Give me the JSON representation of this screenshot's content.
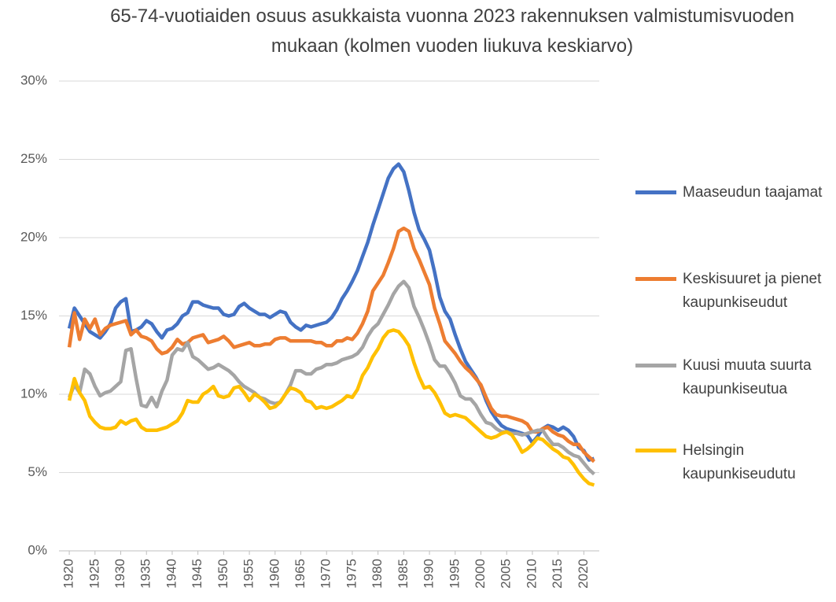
{
  "chart_data": {
    "type": "line",
    "title": "65-74-vuotiaiden osuus asukkaista vuonna 2023 rakennuksen valmistumisvuoden mukaan  (kolmen vuoden liukuva keskiarvo)",
    "x": [
      1920,
      1921,
      1922,
      1923,
      1924,
      1925,
      1926,
      1927,
      1928,
      1929,
      1930,
      1931,
      1932,
      1933,
      1934,
      1935,
      1936,
      1937,
      1938,
      1939,
      1940,
      1941,
      1942,
      1943,
      1944,
      1945,
      1946,
      1947,
      1948,
      1949,
      1950,
      1951,
      1952,
      1953,
      1954,
      1955,
      1956,
      1957,
      1958,
      1959,
      1960,
      1961,
      1962,
      1963,
      1964,
      1965,
      1966,
      1967,
      1968,
      1969,
      1970,
      1971,
      1972,
      1973,
      1974,
      1975,
      1976,
      1977,
      1978,
      1979,
      1980,
      1981,
      1982,
      1983,
      1984,
      1985,
      1986,
      1987,
      1988,
      1989,
      1990,
      1991,
      1992,
      1993,
      1994,
      1995,
      1996,
      1997,
      1998,
      1999,
      2000,
      2001,
      2002,
      2003,
      2004,
      2005,
      2006,
      2007,
      2008,
      2009,
      2010,
      2011,
      2012,
      2013,
      2014,
      2015,
      2016,
      2017,
      2018,
      2019,
      2020,
      2021,
      2022
    ],
    "series": [
      {
        "name": "Maaseudun taajamat",
        "color": "#4472c4",
        "values": [
          14.2,
          15.5,
          15.0,
          14.5,
          14.0,
          13.8,
          13.6,
          14.0,
          14.5,
          15.5,
          15.9,
          16.1,
          14.0,
          14.1,
          14.3,
          14.7,
          14.5,
          14.0,
          13.6,
          14.1,
          14.2,
          14.5,
          15.0,
          15.2,
          15.9,
          15.9,
          15.7,
          15.6,
          15.5,
          15.5,
          15.1,
          15.0,
          15.1,
          15.6,
          15.8,
          15.5,
          15.3,
          15.1,
          15.1,
          14.9,
          15.1,
          15.3,
          15.2,
          14.6,
          14.3,
          14.1,
          14.4,
          14.3,
          14.4,
          14.5,
          14.6,
          14.9,
          15.4,
          16.1,
          16.6,
          17.2,
          17.9,
          18.8,
          19.7,
          20.8,
          21.8,
          22.8,
          23.8,
          24.4,
          24.7,
          24.2,
          23.0,
          21.6,
          20.5,
          19.9,
          19.2,
          17.8,
          16.2,
          15.3,
          14.8,
          13.8,
          12.9,
          12.1,
          11.6,
          11.1,
          10.5,
          9.6,
          8.9,
          8.4,
          8.0,
          7.8,
          7.7,
          7.6,
          7.5,
          7.4,
          6.9,
          7.3,
          7.8,
          8.0,
          7.9,
          7.7,
          7.9,
          7.7,
          7.3,
          6.6,
          6.4,
          5.8,
          5.9
        ]
      },
      {
        "name": "Keskisuuret ja pienet kaupunkiseudut",
        "color": "#ed7d31",
        "values": [
          13.0,
          15.2,
          13.5,
          14.8,
          14.2,
          14.8,
          13.8,
          14.2,
          14.4,
          14.5,
          14.6,
          14.7,
          13.8,
          14.1,
          13.7,
          13.6,
          13.4,
          12.9,
          12.6,
          12.7,
          13.0,
          13.5,
          13.2,
          13.3,
          13.6,
          13.7,
          13.8,
          13.3,
          13.4,
          13.5,
          13.7,
          13.4,
          13.0,
          13.1,
          13.2,
          13.3,
          13.1,
          13.1,
          13.2,
          13.2,
          13.5,
          13.6,
          13.6,
          13.4,
          13.4,
          13.4,
          13.4,
          13.4,
          13.3,
          13.3,
          13.1,
          13.1,
          13.4,
          13.4,
          13.6,
          13.5,
          13.9,
          14.5,
          15.3,
          16.6,
          17.1,
          17.6,
          18.4,
          19.3,
          20.4,
          20.6,
          20.4,
          19.3,
          18.6,
          17.8,
          17.0,
          15.5,
          14.5,
          13.4,
          13.0,
          12.6,
          12.1,
          11.7,
          11.4,
          11.0,
          10.6,
          9.8,
          9.1,
          8.7,
          8.6,
          8.6,
          8.5,
          8.4,
          8.3,
          8.1,
          7.6,
          7.6,
          7.8,
          7.9,
          7.6,
          7.4,
          7.3,
          7.0,
          6.8,
          6.8,
          6.3,
          6.0,
          5.7
        ]
      },
      {
        "name": "Kuusi muuta suurta kaupunkiseutua",
        "color": "#a5a5a5",
        "values": [
          9.8,
          10.6,
          10.1,
          11.6,
          11.3,
          10.5,
          9.9,
          10.1,
          10.2,
          10.5,
          10.8,
          12.8,
          12.9,
          11.0,
          9.3,
          9.2,
          9.8,
          9.2,
          10.2,
          10.9,
          12.5,
          12.9,
          12.8,
          13.3,
          12.4,
          12.2,
          11.9,
          11.6,
          11.7,
          11.9,
          11.7,
          11.5,
          11.2,
          10.8,
          10.5,
          10.3,
          10.1,
          9.8,
          9.7,
          9.5,
          9.4,
          9.5,
          10.0,
          10.6,
          11.5,
          11.5,
          11.3,
          11.3,
          11.6,
          11.7,
          11.9,
          11.9,
          12.0,
          12.2,
          12.3,
          12.4,
          12.6,
          13.0,
          13.7,
          14.2,
          14.5,
          15.1,
          15.7,
          16.4,
          16.9,
          17.2,
          16.8,
          15.6,
          14.9,
          14.1,
          13.2,
          12.2,
          11.8,
          11.8,
          11.3,
          10.7,
          9.9,
          9.7,
          9.7,
          9.3,
          8.7,
          8.2,
          8.1,
          7.8,
          7.6,
          7.6,
          7.5,
          7.5,
          7.4,
          7.5,
          7.6,
          7.7,
          7.7,
          7.2,
          6.8,
          6.8,
          6.6,
          6.3,
          6.1,
          6.0,
          5.6,
          5.2,
          4.9
        ]
      },
      {
        "name": "Helsingin kaupunkiseudutu",
        "color": "#ffc000",
        "values": [
          9.6,
          11.0,
          10.1,
          9.6,
          8.6,
          8.2,
          7.9,
          7.8,
          7.8,
          7.9,
          8.3,
          8.1,
          8.3,
          8.4,
          7.9,
          7.7,
          7.7,
          7.7,
          7.8,
          7.9,
          8.1,
          8.3,
          8.8,
          9.6,
          9.5,
          9.5,
          10.0,
          10.2,
          10.5,
          9.9,
          9.8,
          9.9,
          10.4,
          10.5,
          10.1,
          9.6,
          10.0,
          9.8,
          9.5,
          9.1,
          9.2,
          9.5,
          10.0,
          10.4,
          10.3,
          10.1,
          9.6,
          9.5,
          9.1,
          9.2,
          9.1,
          9.2,
          9.4,
          9.6,
          9.9,
          9.8,
          10.3,
          11.2,
          11.7,
          12.4,
          12.9,
          13.6,
          14.0,
          14.1,
          14.0,
          13.6,
          13.1,
          12.0,
          11.1,
          10.4,
          10.5,
          10.1,
          9.5,
          8.8,
          8.6,
          8.7,
          8.6,
          8.5,
          8.2,
          7.9,
          7.6,
          7.3,
          7.2,
          7.3,
          7.5,
          7.6,
          7.4,
          6.9,
          6.3,
          6.5,
          6.8,
          7.2,
          7.1,
          6.8,
          6.5,
          6.3,
          6.0,
          5.9,
          5.5,
          5.0,
          4.6,
          4.3,
          4.2
        ]
      }
    ],
    "xlim": [
      1918,
      2023
    ],
    "xticks": [
      1920,
      1925,
      1930,
      1935,
      1940,
      1945,
      1950,
      1955,
      1960,
      1965,
      1970,
      1975,
      1980,
      1985,
      1990,
      1995,
      2000,
      2005,
      2010,
      2015,
      2020
    ],
    "ylim": [
      0,
      30
    ],
    "yticks": [
      {
        "value": 0,
        "label": "0%"
      },
      {
        "value": 5,
        "label": "5%"
      },
      {
        "value": 10,
        "label": "10%"
      },
      {
        "value": 15,
        "label": "15%"
      },
      {
        "value": 20,
        "label": "20%"
      },
      {
        "value": 25,
        "label": "25%"
      },
      {
        "value": 30,
        "label": "30%"
      }
    ],
    "grid": true,
    "legend": "right"
  }
}
